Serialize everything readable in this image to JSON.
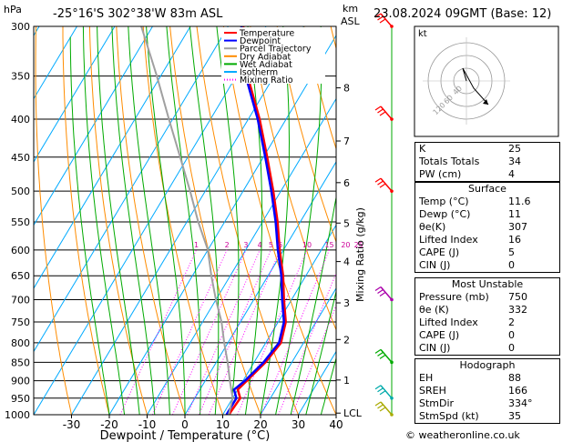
{
  "header": {
    "pressure_unit": "hPa",
    "location": "-25°16'S  302°38'W  83m  ASL",
    "km_unit": "km",
    "asl_unit": "ASL",
    "datetime": "23.08.2024  09GMT  (Base: 12)"
  },
  "footer": {
    "copyright": "© weatheronline.co.uk"
  },
  "chart_data": {
    "type": "line",
    "title": "",
    "xlabel": "Dewpoint / Temperature (°C)",
    "ylabel": "",
    "right_axis_label": "Mixing Ratio (g/kg)",
    "y_scale": "log-pressure",
    "xlim": [
      -40,
      40
    ],
    "ylim": [
      1000,
      300
    ],
    "x_ticks": [
      -30,
      -20,
      -10,
      0,
      10,
      20,
      30,
      40
    ],
    "pressure_ticks": [
      300,
      350,
      400,
      450,
      500,
      550,
      600,
      650,
      700,
      750,
      800,
      850,
      900,
      950,
      1000
    ],
    "km_ticks": [
      {
        "label": "8",
        "p": 363
      },
      {
        "label": "7",
        "p": 428
      },
      {
        "label": "6",
        "p": 487
      },
      {
        "label": "5",
        "p": 552
      },
      {
        "label": "4",
        "p": 622
      },
      {
        "label": "3",
        "p": 707
      },
      {
        "label": "2",
        "p": 792
      },
      {
        "label": "1",
        "p": 898
      },
      {
        "label": "LCL",
        "p": 995
      }
    ],
    "mixing_ratio_labels": [
      "1",
      "2",
      "3",
      "4",
      "5",
      "6",
      "10",
      "15",
      "20",
      "25"
    ],
    "legend": [
      {
        "name": "Temperature",
        "color": "#ff0000",
        "dash": "solid"
      },
      {
        "name": "Dewpoint",
        "color": "#0000ff",
        "dash": "solid"
      },
      {
        "name": "Parcel Trajectory",
        "color": "#a0a0a0",
        "dash": "solid"
      },
      {
        "name": "Dry Adiabat",
        "color": "#ff8c00",
        "dash": "solid"
      },
      {
        "name": "Wet Adiabat",
        "color": "#00aa00",
        "dash": "solid"
      },
      {
        "name": "Isotherm",
        "color": "#00aaff",
        "dash": "solid"
      },
      {
        "name": "Mixing Ratio",
        "color": "#ff00ff",
        "dash": "dotted"
      }
    ],
    "legend_position": "top-left",
    "series": [
      {
        "name": "Temperature",
        "color": "#ff0000",
        "points": [
          [
            1000,
            11.6
          ],
          [
            950,
            12
          ],
          [
            925,
            10
          ],
          [
            900,
            11
          ],
          [
            850,
            13
          ],
          [
            800,
            14
          ],
          [
            750,
            12
          ],
          [
            700,
            8
          ],
          [
            650,
            4
          ],
          [
            600,
            -1
          ],
          [
            550,
            -6
          ],
          [
            500,
            -12
          ],
          [
            450,
            -19
          ],
          [
            400,
            -27
          ],
          [
            350,
            -37
          ],
          [
            300,
            -46
          ]
        ]
      },
      {
        "name": "Dewpoint",
        "color": "#0000ff",
        "points": [
          [
            1000,
            11
          ],
          [
            950,
            11
          ],
          [
            925,
            9
          ],
          [
            900,
            10.5
          ],
          [
            850,
            12.5
          ],
          [
            800,
            13.5
          ],
          [
            750,
            11.5
          ],
          [
            700,
            7.5
          ],
          [
            650,
            3.5
          ],
          [
            600,
            -1.5
          ],
          [
            550,
            -6.5
          ],
          [
            500,
            -12.5
          ],
          [
            450,
            -19.5
          ],
          [
            400,
            -27.5
          ],
          [
            350,
            -37.5
          ],
          [
            300,
            -46.5
          ]
        ]
      },
      {
        "name": "Parcel Trajectory",
        "color": "#a0a0a0",
        "points": [
          [
            1000,
            11.6
          ],
          [
            950,
            10
          ],
          [
            900,
            6.5
          ],
          [
            850,
            3
          ],
          [
            800,
            -1
          ],
          [
            750,
            -5
          ],
          [
            700,
            -10
          ],
          [
            650,
            -15
          ],
          [
            600,
            -20
          ],
          [
            550,
            -27
          ],
          [
            500,
            -34
          ],
          [
            450,
            -42
          ],
          [
            400,
            -51
          ],
          [
            350,
            -61
          ],
          [
            300,
            -73
          ]
        ]
      }
    ],
    "wind_barbs": [
      {
        "p": 300,
        "color": "#ff0000"
      },
      {
        "p": 400,
        "color": "#ff0000"
      },
      {
        "p": 500,
        "color": "#ff0000"
      },
      {
        "p": 700,
        "color": "#aa00aa"
      },
      {
        "p": 850,
        "color": "#00aa00"
      },
      {
        "p": 950,
        "color": "#00aaaa"
      },
      {
        "p": 1000,
        "color": "#aaaa00"
      }
    ],
    "hodograph": {
      "unit": "kt",
      "ring_labels": [
        "40",
        "60",
        "120"
      ],
      "points": [
        [
          0,
          0
        ],
        [
          -4,
          -14
        ],
        [
          8,
          8
        ],
        [
          24,
          26
        ]
      ]
    }
  },
  "indices": [
    {
      "label": "K",
      "value": "25"
    },
    {
      "label": "Totals Totals",
      "value": "34"
    },
    {
      "label": "PW (cm)",
      "value": "4"
    }
  ],
  "surface": {
    "title": "Surface",
    "rows": [
      {
        "label": "Temp (°C)",
        "value": "11.6"
      },
      {
        "label": "Dewp (°C)",
        "value": "11"
      },
      {
        "label": "θe(K)",
        "value": "307"
      },
      {
        "label": "Lifted Index",
        "value": "16"
      },
      {
        "label": "CAPE (J)",
        "value": "5"
      },
      {
        "label": "CIN (J)",
        "value": "0"
      }
    ]
  },
  "most_unstable": {
    "title": "Most Unstable",
    "rows": [
      {
        "label": "Pressure (mb)",
        "value": "750"
      },
      {
        "label": "θe (K)",
        "value": "332"
      },
      {
        "label": "Lifted Index",
        "value": "2"
      },
      {
        "label": "CAPE (J)",
        "value": "0"
      },
      {
        "label": "CIN (J)",
        "value": "0"
      }
    ]
  },
  "hodograph_table": {
    "title": "Hodograph",
    "rows": [
      {
        "label": "EH",
        "value": "88"
      },
      {
        "label": "SREH",
        "value": "166"
      },
      {
        "label": "StmDir",
        "value": "334°"
      },
      {
        "label": "StmSpd (kt)",
        "value": "35"
      }
    ]
  }
}
